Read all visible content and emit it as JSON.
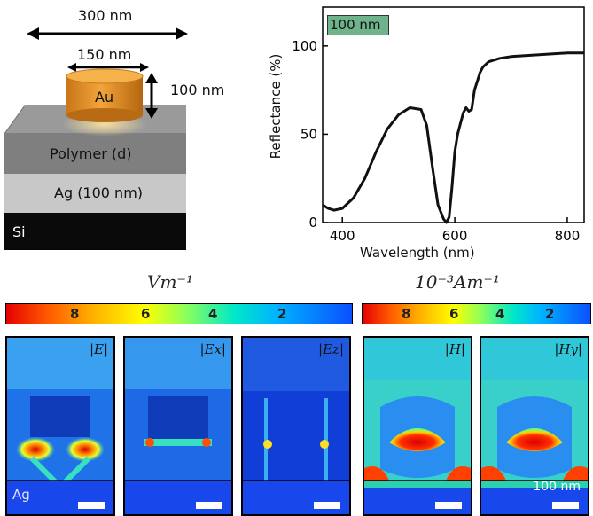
{
  "schematic": {
    "width_label": "300 nm",
    "diameter_label": "150 nm",
    "disk_label": "Au",
    "height_label": "100 nm",
    "polymer_label": "Polymer (d)",
    "silver_label": "Ag (100 nm)",
    "substrate_label": "Si"
  },
  "chart_data": {
    "type": "line",
    "inset_label": "100 nm",
    "xlabel": "Wavelength (nm)",
    "ylabel": "Reflectance (%)",
    "xlim": [
      365,
      830
    ],
    "ylim": [
      0,
      122
    ],
    "xticks": [
      "400",
      "600",
      "800"
    ],
    "yticks": [
      "0",
      "50",
      "100"
    ],
    "grid": false,
    "series": [
      {
        "x": [
          365,
          375,
          385,
          400,
          420,
          440,
          460,
          480,
          500,
          520,
          540,
          550,
          560,
          570,
          580,
          585,
          590,
          595,
          600,
          605,
          610,
          615,
          620,
          625,
          630,
          635,
          640,
          645,
          650,
          660,
          680,
          700,
          750,
          800,
          830
        ],
        "values": [
          10,
          8,
          7,
          8,
          14,
          25,
          40,
          53,
          61,
          65,
          64,
          55,
          32,
          10,
          2,
          0,
          3,
          20,
          40,
          50,
          56,
          62,
          65,
          63,
          64,
          75,
          80,
          85,
          88,
          91,
          93,
          94,
          95,
          96,
          96
        ]
      }
    ]
  },
  "e_colorbar": {
    "unit": "Vm⁻¹",
    "ticks": [
      "8",
      "6",
      "4",
      "2"
    ]
  },
  "h_colorbar": {
    "unit": "10⁻³Am⁻¹",
    "ticks": [
      "8",
      "6",
      "4",
      "2"
    ]
  },
  "panels": {
    "p1_label": "|E|",
    "p2_label": "|Ex|",
    "p3_label": "|Ez|",
    "p4_label": "|H|",
    "p5_label": "|Hy|",
    "ag_label": "Ag",
    "scale_label": "100 nm"
  }
}
